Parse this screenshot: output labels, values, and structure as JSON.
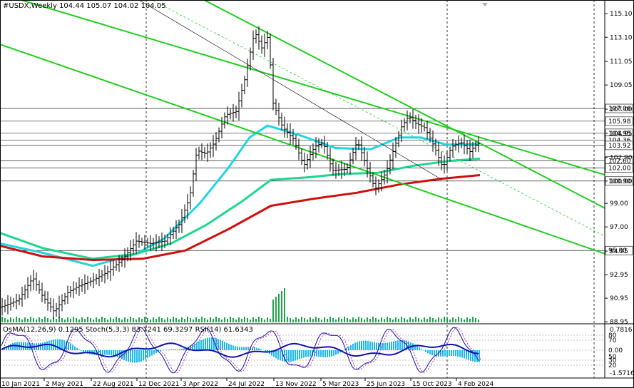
{
  "header": {
    "symbol": "#USDX,Weekly",
    "ohlc": "104.44 105.07 104.02 104.05"
  },
  "oscillator": {
    "caption": "OsMA(12,26,9) 0.1295  Stoch(5,3,3) 83.7241 69.3297  RSI(14) 61.6343",
    "scale_top": "0.7816",
    "scale_bottom": "-1.5716",
    "levels": [
      "80",
      "70",
      "0.00",
      "50",
      "30",
      "20"
    ]
  },
  "colors": {
    "ma_fast": "#22d4e0",
    "ma_mid": "#1ed68e",
    "ma_slow": "#cc1010",
    "channel": "#22cc22",
    "candles": "#000000",
    "histogram": "#20b8e8",
    "stoch": "#1010b0",
    "rsi": "#b01090"
  },
  "chart_data": {
    "type": "candlestick",
    "symbol": "#USDX",
    "timeframe": "Weekly",
    "last_bar": {
      "open": 104.44,
      "high": 105.07,
      "low": 104.02,
      "close": 104.05
    },
    "y_ticks": [
      "115.10",
      "113.10",
      "111.05",
      "109.05",
      "107.00",
      "104.95",
      "102.90",
      "100.90",
      "99.00",
      "97.00",
      "94.95",
      "92.95",
      "90.95",
      "88.95"
    ],
    "level_tags": [
      "107.06",
      "105.98",
      "104.95",
      "104.36",
      "103.92",
      "102.60",
      "102.00",
      "100.90",
      "95.00"
    ],
    "x_ticks": [
      "10 Jan 2021",
      "2 May 2021",
      "22 Aug 2021",
      "12 Dec 2021",
      "3 Apr 2022",
      "24 Jul 2022",
      "13 Nov 2022",
      "5 Mar 2023",
      "25 Jun 2023",
      "15 Oct 2023",
      "4 Feb 2024"
    ],
    "ylim": [
      88.9,
      115.9
    ],
    "price_path": [
      [
        0,
        90.2
      ],
      [
        25,
        90.8
      ],
      [
        45,
        92.7
      ],
      [
        58,
        91.2
      ],
      [
        75,
        89.8
      ],
      [
        95,
        91.5
      ],
      [
        110,
        92.0
      ],
      [
        130,
        92.5
      ],
      [
        150,
        93.2
      ],
      [
        170,
        94.2
      ],
      [
        190,
        95.8
      ],
      [
        210,
        95.6
      ],
      [
        230,
        95.8
      ],
      [
        250,
        97.2
      ],
      [
        265,
        99.5
      ],
      [
        275,
        103.5
      ],
      [
        288,
        103.2
      ],
      [
        300,
        104.2
      ],
      [
        315,
        106.5
      ],
      [
        330,
        106.8
      ],
      [
        342,
        109.5
      ],
      [
        356,
        113.6
      ],
      [
        366,
        112.2
      ],
      [
        375,
        113.2
      ],
      [
        382,
        107.5
      ],
      [
        395,
        105.5
      ],
      [
        410,
        104.5
      ],
      [
        425,
        102.2
      ],
      [
        440,
        103.8
      ],
      [
        452,
        104.2
      ],
      [
        465,
        101.8
      ],
      [
        485,
        101.9
      ],
      [
        500,
        104.3
      ],
      [
        512,
        102.3
      ],
      [
        525,
        100.2
      ],
      [
        540,
        101.6
      ],
      [
        550,
        103.4
      ],
      [
        562,
        105.5
      ],
      [
        572,
        106.4
      ],
      [
        582,
        105.8
      ],
      [
        595,
        105.4
      ],
      [
        608,
        103.8
      ],
      [
        620,
        102.0
      ],
      [
        632,
        103.8
      ],
      [
        645,
        104.2
      ],
      [
        658,
        103.4
      ],
      [
        668,
        104.1
      ],
      [
        673,
        104.05
      ]
    ],
    "series": [
      {
        "name": "",
        "kind": "ma_fast",
        "points": [
          [
            0,
            95.6
          ],
          [
            60,
            94.8
          ],
          [
            130,
            93.7
          ],
          [
            190,
            94.7
          ],
          [
            230,
            96.0
          ],
          [
            280,
            99.0
          ],
          [
            320,
            102.0
          ],
          [
            350,
            104.6
          ],
          [
            375,
            105.6
          ],
          [
            420,
            104.8
          ],
          [
            470,
            103.7
          ],
          [
            520,
            103.6
          ],
          [
            560,
            104.6
          ],
          [
            590,
            104.6
          ],
          [
            625,
            104.0
          ],
          [
            655,
            104.0
          ],
          [
            673,
            104.1
          ]
        ]
      },
      {
        "name": "",
        "kind": "ma_mid",
        "points": [
          [
            0,
            96.5
          ],
          [
            60,
            95.2
          ],
          [
            130,
            94.3
          ],
          [
            190,
            94.7
          ],
          [
            240,
            95.6
          ],
          [
            290,
            97.2
          ],
          [
            340,
            99.2
          ],
          [
            380,
            101.0
          ],
          [
            430,
            101.2
          ],
          [
            480,
            101.5
          ],
          [
            530,
            101.6
          ],
          [
            580,
            102.2
          ],
          [
            630,
            102.6
          ],
          [
            673,
            102.8
          ]
        ]
      },
      {
        "name": "",
        "kind": "ma_slow",
        "points": [
          [
            0,
            95.4
          ],
          [
            60,
            94.5
          ],
          [
            130,
            94.2
          ],
          [
            200,
            94.3
          ],
          [
            260,
            95.0
          ],
          [
            320,
            96.8
          ],
          [
            380,
            98.8
          ],
          [
            440,
            99.4
          ],
          [
            500,
            99.9
          ],
          [
            560,
            100.6
          ],
          [
            620,
            101.1
          ],
          [
            673,
            101.4
          ]
        ]
      }
    ],
    "channel_lines": [
      {
        "from": [
          0,
          116.8
        ],
        "to": [
          673,
          104.6
        ],
        "extend_to": 848
      },
      {
        "from": [
          0,
          112.5
        ],
        "to": [
          673,
          98.4
        ],
        "extend_to": 848
      },
      {
        "from": [
          285,
          116.3
        ],
        "to": [
          848,
          98.6
        ],
        "extend_to": 848
      }
    ],
    "grid": true
  }
}
